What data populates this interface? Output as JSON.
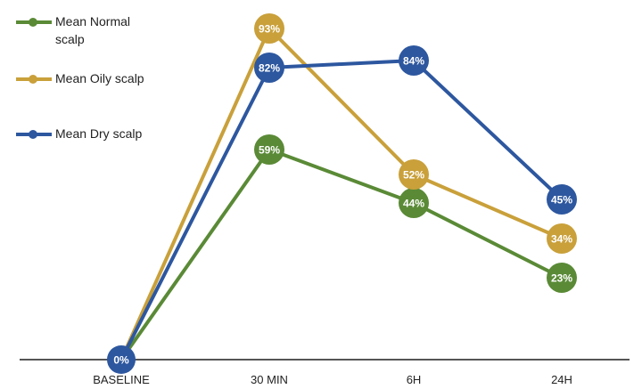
{
  "chart_data": {
    "type": "line",
    "categories": [
      "BASELINE",
      "30 MIN",
      "6H",
      "24H"
    ],
    "series": [
      {
        "name": "Mean Normal scalp",
        "values": [
          0,
          59,
          44,
          23
        ],
        "color": "#5a8a36"
      },
      {
        "name": "Mean Oily scalp",
        "values": [
          0,
          93,
          52,
          34
        ],
        "color": "#c9a03a"
      },
      {
        "name": "Mean Dry scalp",
        "values": [
          0,
          82,
          84,
          45
        ],
        "color": "#2d579f"
      }
    ],
    "baseline_label": "0%",
    "ylim": [
      0,
      100
    ],
    "grid": false,
    "legend": "top-left",
    "value_suffix": "%"
  }
}
